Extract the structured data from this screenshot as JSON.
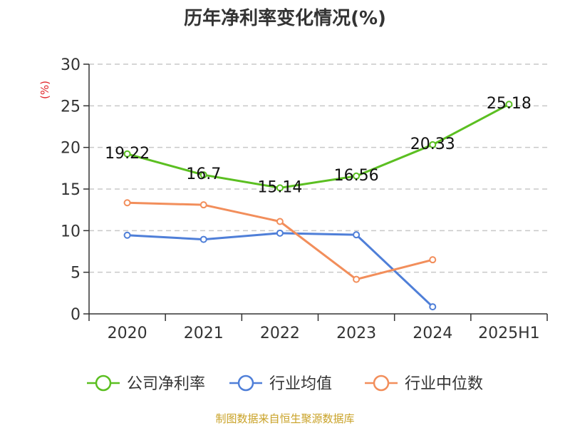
{
  "chart_data": {
    "type": "line",
    "title": "历年净利率变化情况(%)",
    "ylabel": "(%)",
    "ylim": [
      0,
      30
    ],
    "yticks": [
      0,
      5,
      10,
      15,
      20,
      25,
      30
    ],
    "grid": true,
    "categories": [
      "2020",
      "2021",
      "2022",
      "2023",
      "2024",
      "2025H1"
    ],
    "series": [
      {
        "name": "公司净利率",
        "color": "#5bbf21",
        "show_labels": true,
        "values": [
          19.22,
          16.7,
          15.14,
          16.56,
          20.33,
          25.18
        ]
      },
      {
        "name": "行业均值",
        "color": "#4f7fd8",
        "show_labels": false,
        "values": [
          9.45,
          8.95,
          9.7,
          9.5,
          0.85,
          null
        ]
      },
      {
        "name": "行业中位数",
        "color": "#f28e5b",
        "show_labels": false,
        "values": [
          13.35,
          13.1,
          11.1,
          4.15,
          6.5,
          null
        ]
      }
    ],
    "legend_position": "bottom",
    "source": "制图数据来自恒生聚源数据库"
  }
}
